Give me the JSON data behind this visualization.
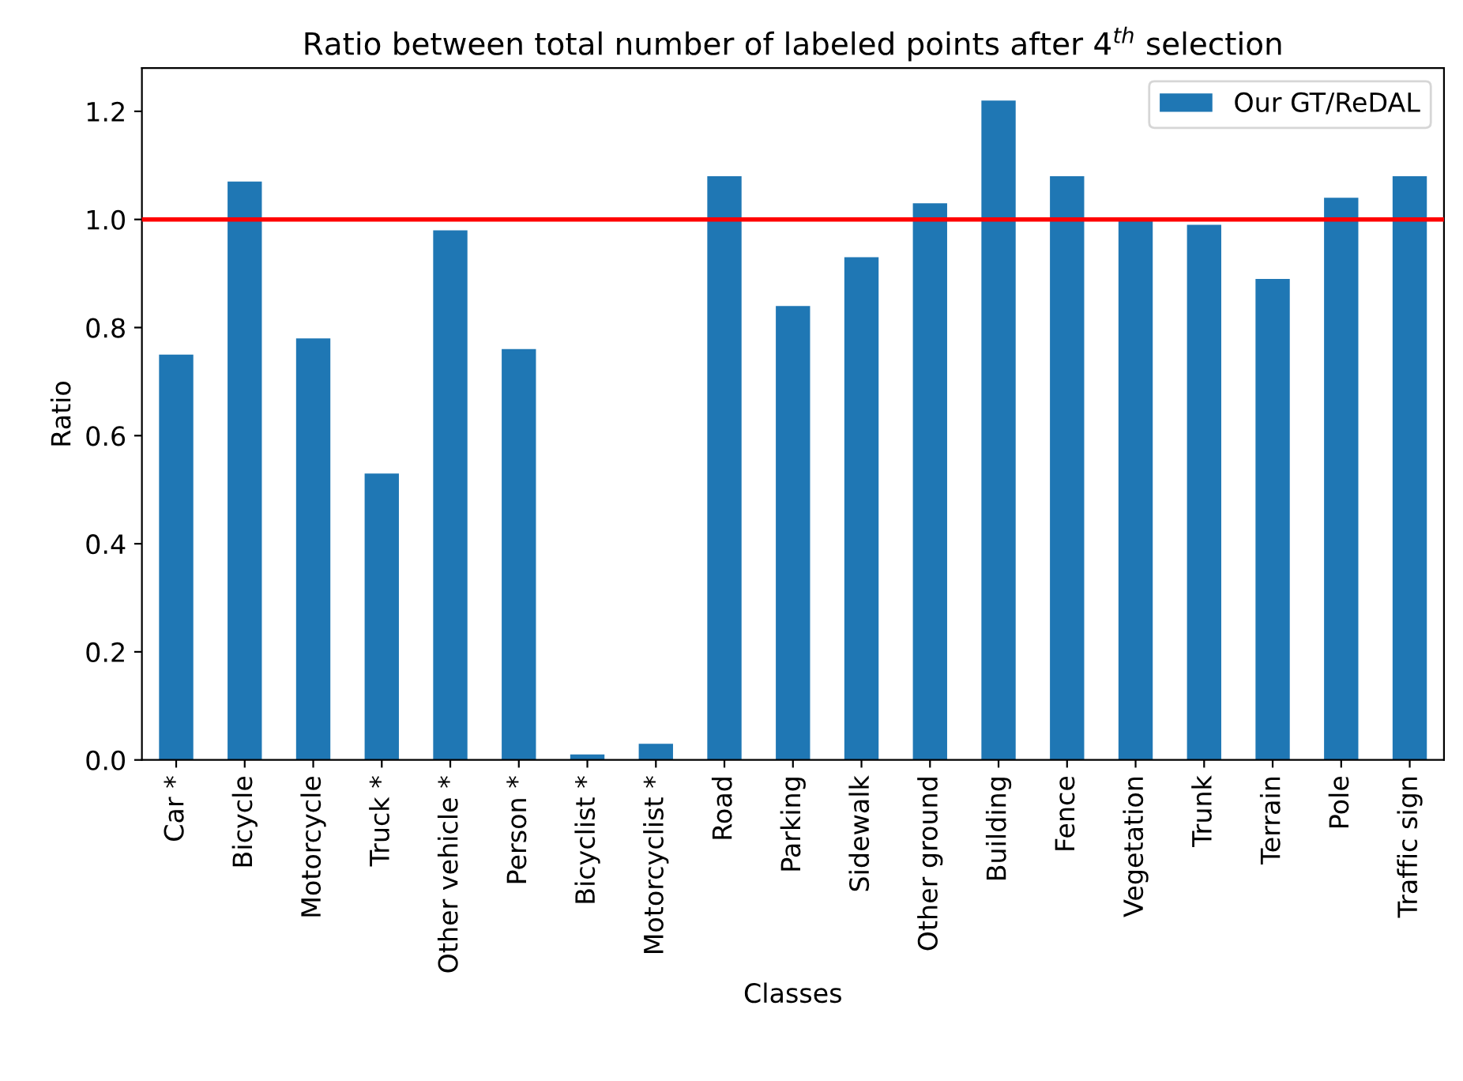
{
  "chart_data": {
    "type": "bar",
    "title": "Ratio between total number of labeled points after 4$^{th}$ selection",
    "xlabel": "Classes",
    "ylabel": "Ratio",
    "categories": [
      "Car *",
      "Bicycle",
      "Motorcycle",
      "Truck *",
      "Other vehicle *",
      "Person *",
      "Bicyclist *",
      "Motorcyclist *",
      "Road",
      "Parking",
      "Sidewalk",
      "Other ground",
      "Building",
      "Fence",
      "Vegetation",
      "Trunk",
      "Terrain",
      "Pole",
      "Traffic sign"
    ],
    "series": [
      {
        "name": "Our GT/ReDAL",
        "color": "#1f77b4",
        "values": [
          0.75,
          1.07,
          0.78,
          0.53,
          0.98,
          0.76,
          0.01,
          0.03,
          1.08,
          0.84,
          0.93,
          1.03,
          1.22,
          1.08,
          1.0,
          0.99,
          0.89,
          1.04,
          1.08
        ]
      }
    ],
    "ylim": [
      0,
      1.28
    ],
    "yticks": [
      {
        "value": 0,
        "label": "0.0"
      },
      0.2,
      0.4,
      0.6,
      0.8,
      {
        "value": 1,
        "label": "1.0"
      },
      1.2
    ],
    "ref_lines": [
      {
        "axis": "y",
        "value": 1,
        "color": "#ff0000"
      }
    ],
    "legend": "top right",
    "grid": false
  }
}
